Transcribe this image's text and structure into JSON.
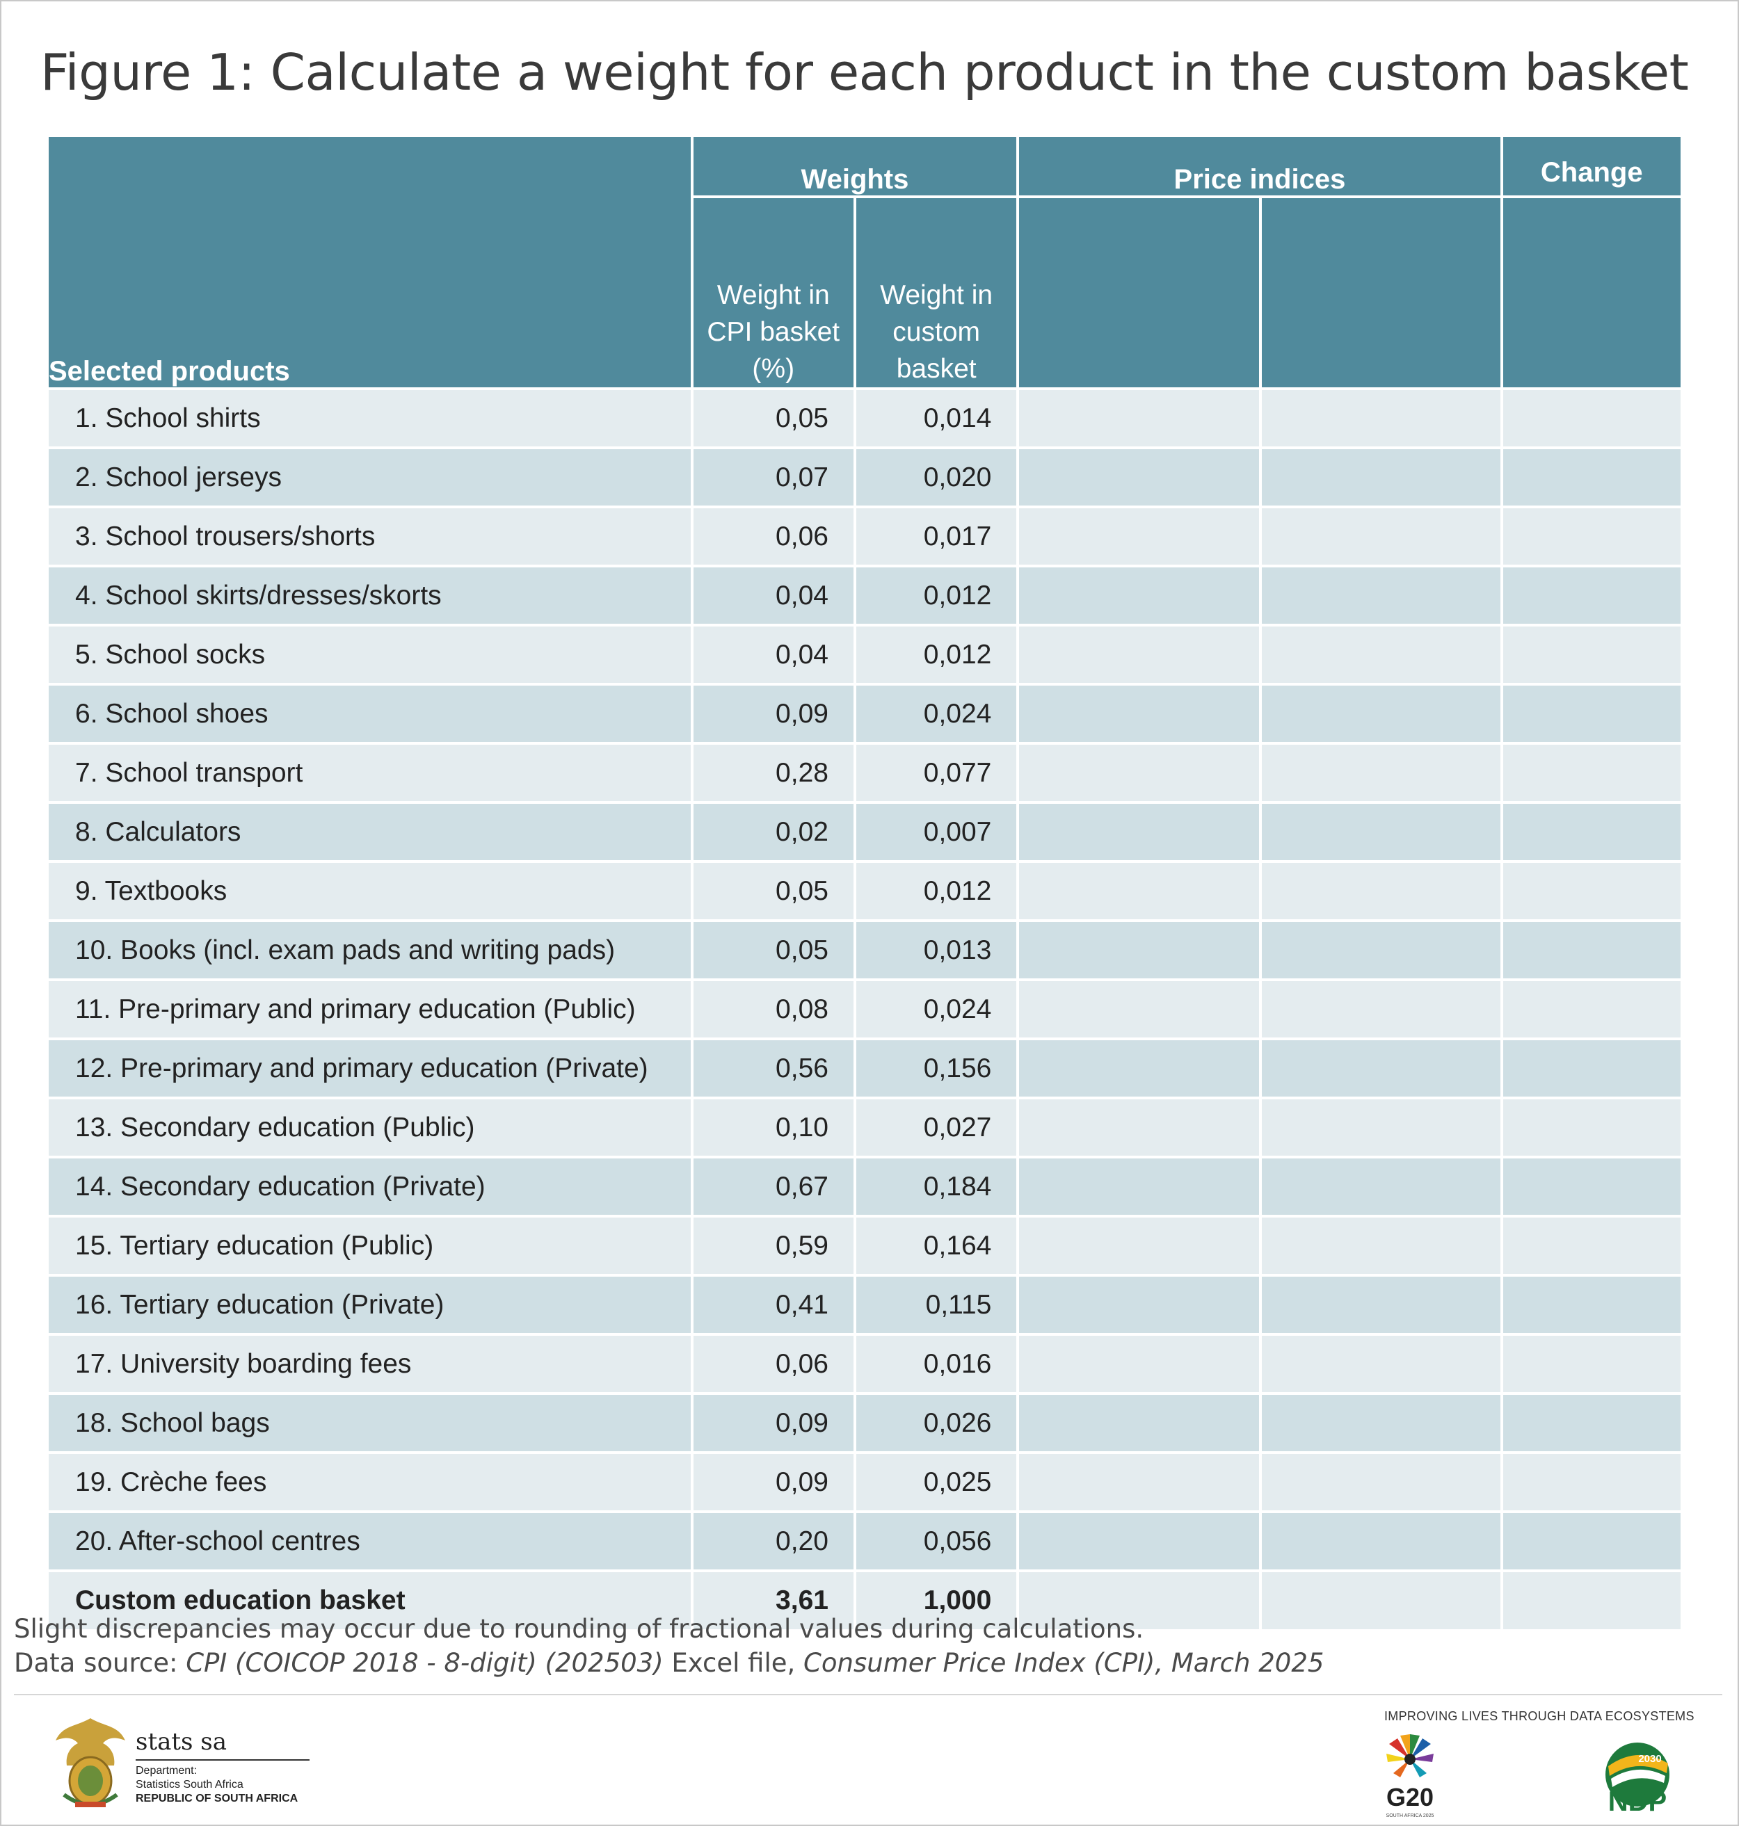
{
  "title": "Figure 1: Calculate a weight for each product in the custom basket",
  "table": {
    "group_headers": {
      "weights": "Weights",
      "price_indices": "Price indices",
      "change": "Change"
    },
    "column_headers": {
      "products": "Selected products",
      "weight_cpi_l1": "Weight in",
      "weight_cpi_l2": "CPI basket",
      "weight_cpi_l3": "(%)",
      "weight_custom_l1": "Weight in",
      "weight_custom_l2": "custom",
      "weight_custom_l3": "basket"
    },
    "rows": [
      {
        "product": "1. School shirts",
        "cpi_weight": "0,05",
        "custom_weight": "0,014"
      },
      {
        "product": "2. School jerseys",
        "cpi_weight": "0,07",
        "custom_weight": "0,020"
      },
      {
        "product": "3. School trousers/shorts",
        "cpi_weight": "0,06",
        "custom_weight": "0,017"
      },
      {
        "product": "4. School skirts/dresses/skorts",
        "cpi_weight": "0,04",
        "custom_weight": "0,012"
      },
      {
        "product": "5. School socks",
        "cpi_weight": "0,04",
        "custom_weight": "0,012"
      },
      {
        "product": "6. School shoes",
        "cpi_weight": "0,09",
        "custom_weight": "0,024"
      },
      {
        "product": "7. School transport",
        "cpi_weight": "0,28",
        "custom_weight": "0,077"
      },
      {
        "product": "8. Calculators",
        "cpi_weight": "0,02",
        "custom_weight": "0,007"
      },
      {
        "product": "9. Textbooks",
        "cpi_weight": "0,05",
        "custom_weight": "0,012"
      },
      {
        "product": "10. Books (incl. exam pads and writing pads)",
        "cpi_weight": "0,05",
        "custom_weight": "0,013"
      },
      {
        "product": "11. Pre-primary and primary education (Public)",
        "cpi_weight": "0,08",
        "custom_weight": "0,024"
      },
      {
        "product": "12. Pre-primary and primary education (Private)",
        "cpi_weight": "0,56",
        "custom_weight": "0,156"
      },
      {
        "product": "13. Secondary education (Public)",
        "cpi_weight": "0,10",
        "custom_weight": "0,027"
      },
      {
        "product": "14. Secondary education (Private)",
        "cpi_weight": "0,67",
        "custom_weight": "0,184"
      },
      {
        "product": "15. Tertiary education (Public)",
        "cpi_weight": "0,59",
        "custom_weight": "0,164"
      },
      {
        "product": "16. Tertiary education (Private)",
        "cpi_weight": "0,41",
        "custom_weight": "0,115"
      },
      {
        "product": "17. University boarding fees",
        "cpi_weight": "0,06",
        "custom_weight": "0,016"
      },
      {
        "product": "18. School bags",
        "cpi_weight": "0,09",
        "custom_weight": "0,026"
      },
      {
        "product": "19. Crèche fees",
        "cpi_weight": "0,09",
        "custom_weight": "0,025"
      },
      {
        "product": "20. After-school centres",
        "cpi_weight": "0,20",
        "custom_weight": "0,056"
      }
    ],
    "total": {
      "product": "Custom education basket",
      "cpi_weight": "3,61",
      "custom_weight": "1,000"
    }
  },
  "footnote": {
    "line1": "Slight discrepancies may occur due to rounding of fractional values during calculations.",
    "source_prefix": "Data source: ",
    "source_file": "CPI (COICOP 2018 - 8-digit) (202503)",
    "source_mid": " Excel file, ",
    "source_pub": "Consumer Price Index (CPI), March 2025"
  },
  "footer": {
    "org_name": "stats sa",
    "dept_l1": "Department:",
    "dept_l2": "Statistics South Africa",
    "dept_l3": "REPUBLIC OF SOUTH AFRICA",
    "tagline": "IMPROVING LIVES THROUGH DATA ECOSYSTEMS",
    "g20_label": "G20",
    "g20_sub": "SOUTH AFRICA 2025",
    "ndp_label": "NDP",
    "ndp_year": "2030"
  },
  "colors": {
    "header_teal": "#508a9c",
    "row_light": "#e4ecef",
    "row_dark": "#cfdfe4",
    "border_grey": "#6d6d6d"
  },
  "icons": {
    "coat_of_arms": "coat-of-arms-icon",
    "g20": "g20-logo-icon",
    "ndp": "ndp-logo-icon"
  }
}
